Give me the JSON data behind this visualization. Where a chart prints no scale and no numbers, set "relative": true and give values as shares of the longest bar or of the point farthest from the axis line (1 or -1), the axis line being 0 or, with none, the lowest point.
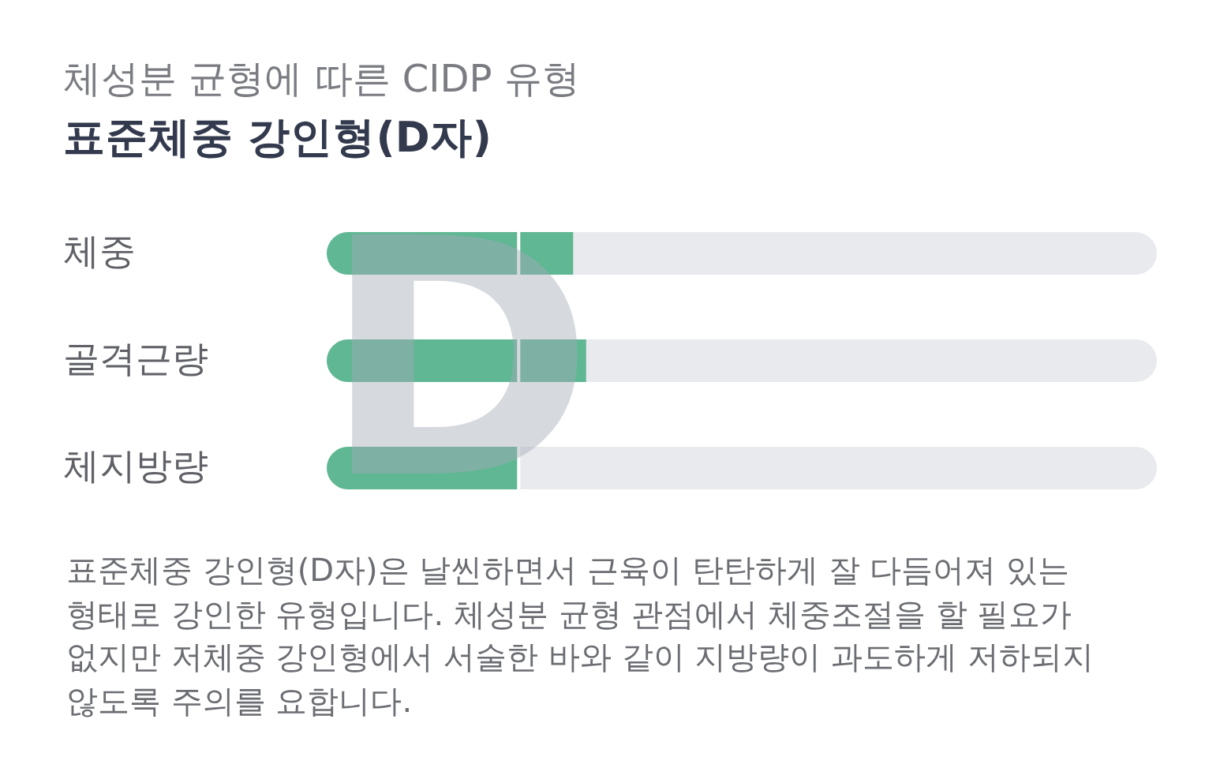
{
  "chart_data": {
    "type": "bar",
    "orientation": "horizontal",
    "relative": true,
    "title": "체성분 균형에 따른 CIDP 유형",
    "subtitle": "표준체중 강인형(D자)",
    "categories": [
      "체중",
      "골격근량",
      "체지방량"
    ],
    "values": [
      0.95,
      1,
      0.74
    ],
    "color": "#60b794",
    "ref_lines": [
      {
        "axis": "x",
        "value": 0.74,
        "color": "#ffffff"
      }
    ],
    "annotations": [
      "D",
      "표준체중 강인형(D자)은 날씬하면서 근육이 탄탄하게 잘 다듬어져 있는 형태로 강인한 유형입니다. 체성분 균형 관점에서 체중조절을 할 필요가 없지만 저체중 강인형에서 서술한 바와 같이 지방량이 과도하게 저하되지 않도록 주의를 요합니다."
    ]
  }
}
